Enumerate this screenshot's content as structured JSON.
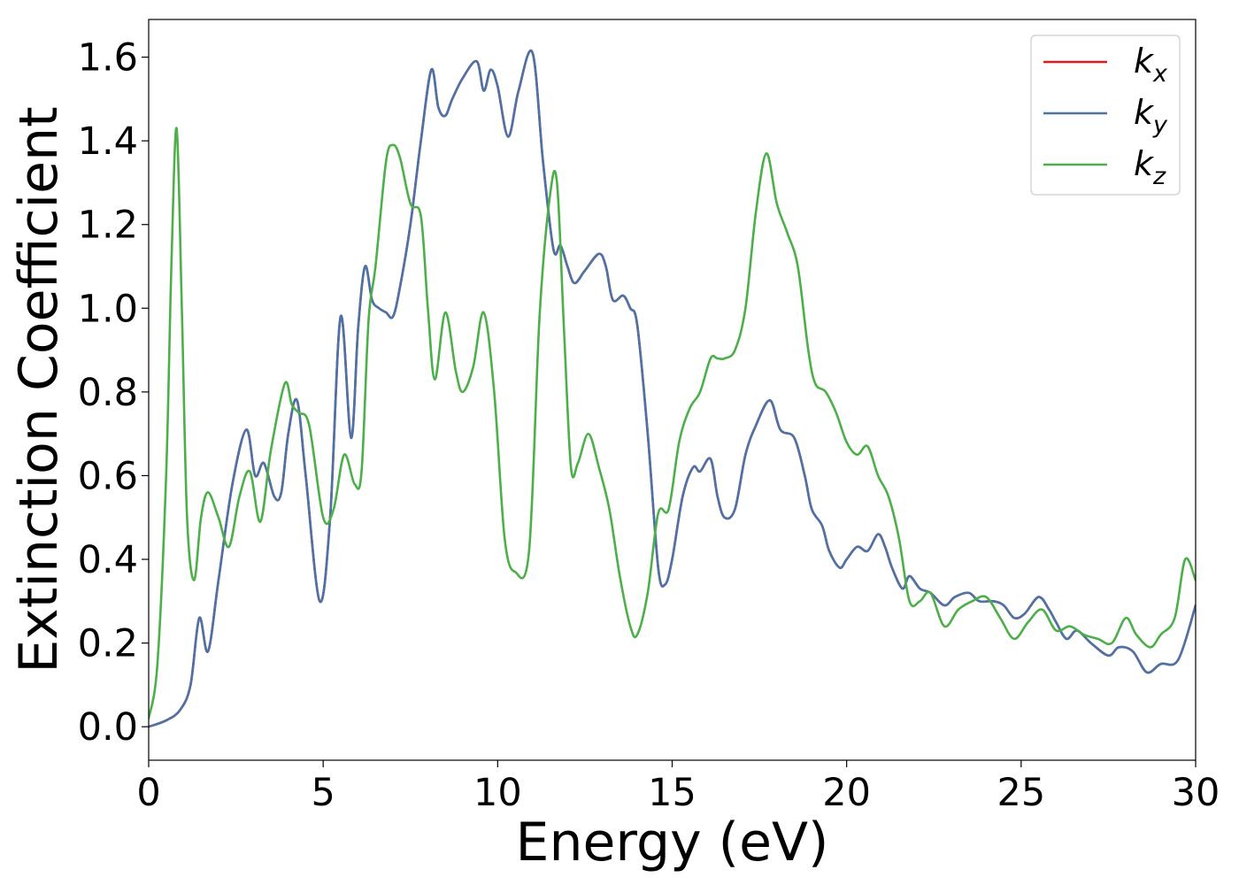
{
  "chart_data": {
    "type": "line",
    "title": "",
    "xlabel": "Energy (eV)",
    "ylabel": "Extinction Coefficient",
    "xlim": [
      0,
      30
    ],
    "ylim": [
      -0.08,
      1.69
    ],
    "xticks": [
      0,
      5,
      10,
      15,
      20,
      25,
      30
    ],
    "xtick_labels": [
      "0",
      "5",
      "10",
      "15",
      "20",
      "25",
      "30"
    ],
    "yticks": [
      0.0,
      0.2,
      0.4,
      0.6,
      0.8,
      1.0,
      1.2,
      1.4,
      1.6
    ],
    "ytick_labels": [
      "0.0",
      "0.2",
      "0.4",
      "0.6",
      "0.8",
      "1.0",
      "1.2",
      "1.4",
      "1.6"
    ],
    "grid": false,
    "legend_position": "top-right",
    "series": [
      {
        "name": "k_x",
        "label_main": "k",
        "label_sub": "x",
        "color": "#e41a1c",
        "x": [
          0,
          0.5,
          0.9,
          1.2,
          1.45,
          1.7,
          2.0,
          2.4,
          2.8,
          3.05,
          3.3,
          3.6,
          3.8,
          4.0,
          4.25,
          4.5,
          4.9,
          5.2,
          5.5,
          5.8,
          6.0,
          6.2,
          6.4,
          6.6,
          6.8,
          7.0,
          7.2,
          7.5,
          7.8,
          8.1,
          8.3,
          8.5,
          8.7,
          9.0,
          9.4,
          9.6,
          9.8,
          10.0,
          10.3,
          10.6,
          11.0,
          11.3,
          11.6,
          11.8,
          12.0,
          12.2,
          12.5,
          12.9,
          13.1,
          13.3,
          13.6,
          13.8,
          14.0,
          14.3,
          14.6,
          14.8,
          15.0,
          15.3,
          15.6,
          15.8,
          16.1,
          16.3,
          16.5,
          16.8,
          17.1,
          17.4,
          17.8,
          18.1,
          18.5,
          18.8,
          19.0,
          19.3,
          19.5,
          19.8,
          20.0,
          20.3,
          20.6,
          20.9,
          21.1,
          21.3,
          21.6,
          21.8,
          22.1,
          22.4,
          22.8,
          23.1,
          23.5,
          23.8,
          24.2,
          24.5,
          24.8,
          25.1,
          25.5,
          25.8,
          26.0,
          26.3,
          26.6,
          27.0,
          27.5,
          27.8,
          28.2,
          28.6,
          29.0,
          29.5,
          30.0
        ],
        "values": [
          0.0,
          0.015,
          0.04,
          0.1,
          0.26,
          0.18,
          0.35,
          0.58,
          0.71,
          0.6,
          0.63,
          0.55,
          0.56,
          0.7,
          0.78,
          0.6,
          0.3,
          0.5,
          0.98,
          0.69,
          0.95,
          1.1,
          1.02,
          1.0,
          0.99,
          0.98,
          1.05,
          1.2,
          1.4,
          1.57,
          1.48,
          1.46,
          1.5,
          1.55,
          1.59,
          1.52,
          1.57,
          1.53,
          1.41,
          1.52,
          1.61,
          1.35,
          1.14,
          1.15,
          1.1,
          1.06,
          1.09,
          1.13,
          1.1,
          1.02,
          1.03,
          1.0,
          0.96,
          0.7,
          0.38,
          0.34,
          0.4,
          0.55,
          0.62,
          0.61,
          0.64,
          0.55,
          0.5,
          0.52,
          0.65,
          0.72,
          0.78,
          0.71,
          0.69,
          0.6,
          0.52,
          0.48,
          0.42,
          0.38,
          0.4,
          0.43,
          0.42,
          0.46,
          0.43,
          0.38,
          0.33,
          0.36,
          0.33,
          0.32,
          0.29,
          0.31,
          0.32,
          0.3,
          0.3,
          0.29,
          0.26,
          0.27,
          0.31,
          0.28,
          0.25,
          0.21,
          0.23,
          0.2,
          0.17,
          0.19,
          0.18,
          0.13,
          0.15,
          0.16,
          0.29
        ]
      },
      {
        "name": "k_y",
        "label_main": "k",
        "label_sub": "y",
        "color": "#4a73a8",
        "x": [
          0,
          0.5,
          0.9,
          1.2,
          1.45,
          1.7,
          2.0,
          2.4,
          2.8,
          3.05,
          3.3,
          3.6,
          3.8,
          4.0,
          4.25,
          4.5,
          4.9,
          5.2,
          5.5,
          5.8,
          6.0,
          6.2,
          6.4,
          6.6,
          6.8,
          7.0,
          7.2,
          7.5,
          7.8,
          8.1,
          8.3,
          8.5,
          8.7,
          9.0,
          9.4,
          9.6,
          9.8,
          10.0,
          10.3,
          10.6,
          11.0,
          11.3,
          11.6,
          11.8,
          12.0,
          12.2,
          12.5,
          12.9,
          13.1,
          13.3,
          13.6,
          13.8,
          14.0,
          14.3,
          14.6,
          14.8,
          15.0,
          15.3,
          15.6,
          15.8,
          16.1,
          16.3,
          16.5,
          16.8,
          17.1,
          17.4,
          17.8,
          18.1,
          18.5,
          18.8,
          19.0,
          19.3,
          19.5,
          19.8,
          20.0,
          20.3,
          20.6,
          20.9,
          21.1,
          21.3,
          21.6,
          21.8,
          22.1,
          22.4,
          22.8,
          23.1,
          23.5,
          23.8,
          24.2,
          24.5,
          24.8,
          25.1,
          25.5,
          25.8,
          26.0,
          26.3,
          26.6,
          27.0,
          27.5,
          27.8,
          28.2,
          28.6,
          29.0,
          29.5,
          30.0
        ],
        "values": [
          0.0,
          0.015,
          0.04,
          0.1,
          0.26,
          0.18,
          0.35,
          0.58,
          0.71,
          0.6,
          0.63,
          0.55,
          0.56,
          0.7,
          0.78,
          0.6,
          0.3,
          0.5,
          0.98,
          0.69,
          0.95,
          1.1,
          1.02,
          1.0,
          0.99,
          0.98,
          1.05,
          1.2,
          1.4,
          1.57,
          1.48,
          1.46,
          1.5,
          1.55,
          1.59,
          1.52,
          1.57,
          1.53,
          1.41,
          1.52,
          1.61,
          1.35,
          1.14,
          1.15,
          1.1,
          1.06,
          1.09,
          1.13,
          1.1,
          1.02,
          1.03,
          1.0,
          0.96,
          0.7,
          0.38,
          0.34,
          0.4,
          0.55,
          0.62,
          0.61,
          0.64,
          0.55,
          0.5,
          0.52,
          0.65,
          0.72,
          0.78,
          0.71,
          0.69,
          0.6,
          0.52,
          0.48,
          0.42,
          0.38,
          0.4,
          0.43,
          0.42,
          0.46,
          0.43,
          0.38,
          0.33,
          0.36,
          0.33,
          0.32,
          0.29,
          0.31,
          0.32,
          0.3,
          0.3,
          0.29,
          0.26,
          0.27,
          0.31,
          0.28,
          0.25,
          0.21,
          0.23,
          0.2,
          0.17,
          0.19,
          0.18,
          0.13,
          0.15,
          0.16,
          0.29
        ]
      },
      {
        "name": "k_z",
        "label_main": "k",
        "label_sub": "z",
        "color": "#4daf4a",
        "x": [
          0,
          0.25,
          0.5,
          0.65,
          0.8,
          0.95,
          1.1,
          1.3,
          1.5,
          1.7,
          2.0,
          2.3,
          2.6,
          2.9,
          3.2,
          3.5,
          3.9,
          4.1,
          4.3,
          4.6,
          5.0,
          5.3,
          5.6,
          5.9,
          6.1,
          6.3,
          6.5,
          6.8,
          7.0,
          7.2,
          7.5,
          7.8,
          8.0,
          8.2,
          8.5,
          8.8,
          9.0,
          9.3,
          9.6,
          9.9,
          10.2,
          10.5,
          10.9,
          11.2,
          11.5,
          11.7,
          11.9,
          12.1,
          12.3,
          12.6,
          12.9,
          13.2,
          13.5,
          13.8,
          14.0,
          14.3,
          14.6,
          14.9,
          15.2,
          15.5,
          15.8,
          16.1,
          16.3,
          16.5,
          16.8,
          17.1,
          17.4,
          17.7,
          18.0,
          18.3,
          18.6,
          18.9,
          19.1,
          19.4,
          19.7,
          20.0,
          20.3,
          20.6,
          20.9,
          21.2,
          21.5,
          21.8,
          22.1,
          22.4,
          22.8,
          23.2,
          23.6,
          24.0,
          24.4,
          24.8,
          25.2,
          25.6,
          26.0,
          26.4,
          26.8,
          27.2,
          27.6,
          28.0,
          28.3,
          28.7,
          29.0,
          29.4,
          29.7,
          30.0
        ],
        "values": [
          0.02,
          0.15,
          0.6,
          1.1,
          1.43,
          1.0,
          0.5,
          0.35,
          0.5,
          0.56,
          0.5,
          0.43,
          0.55,
          0.61,
          0.49,
          0.66,
          0.82,
          0.77,
          0.75,
          0.72,
          0.5,
          0.52,
          0.65,
          0.58,
          0.61,
          0.97,
          1.1,
          1.35,
          1.39,
          1.36,
          1.25,
          1.22,
          1.0,
          0.83,
          0.99,
          0.85,
          0.8,
          0.86,
          0.99,
          0.8,
          0.45,
          0.37,
          0.42,
          0.98,
          1.27,
          1.3,
          0.95,
          0.62,
          0.63,
          0.7,
          0.62,
          0.52,
          0.36,
          0.24,
          0.22,
          0.32,
          0.51,
          0.52,
          0.68,
          0.76,
          0.8,
          0.88,
          0.88,
          0.88,
          0.9,
          1.0,
          1.23,
          1.37,
          1.25,
          1.18,
          1.1,
          0.9,
          0.82,
          0.8,
          0.75,
          0.68,
          0.65,
          0.67,
          0.6,
          0.55,
          0.45,
          0.3,
          0.3,
          0.32,
          0.24,
          0.28,
          0.3,
          0.31,
          0.26,
          0.21,
          0.25,
          0.28,
          0.23,
          0.24,
          0.22,
          0.21,
          0.2,
          0.26,
          0.22,
          0.19,
          0.22,
          0.26,
          0.4,
          0.35
        ]
      }
    ]
  }
}
